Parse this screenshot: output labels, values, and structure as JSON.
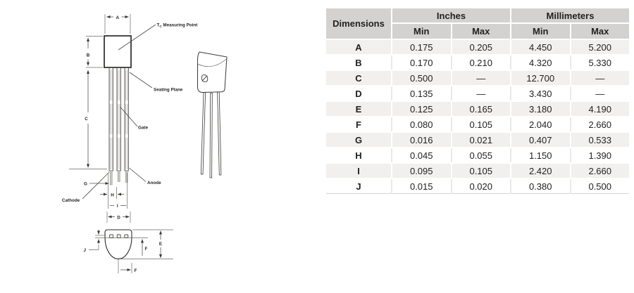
{
  "diagram": {
    "dims": {
      "a": "A",
      "b": "B",
      "c": "C",
      "d": "D",
      "e": "E",
      "f": "F",
      "g": "G",
      "h": "H",
      "i": "I",
      "j": "J"
    },
    "labels": {
      "tc_prefix": "T",
      "tc_sub": "C",
      "tc_text": "Measuring Point",
      "seating_plane": "Seating Plane",
      "gate": "Gate",
      "anode": "Anode",
      "cathode": "Cathode"
    }
  },
  "table": {
    "header": {
      "dimensions": "Dimensions",
      "inches": "Inches",
      "millimeters": "Millimeters",
      "min": "Min",
      "max": "Max"
    },
    "rows": [
      {
        "dim": "A",
        "in_min": "0.175",
        "in_max": "0.205",
        "mm_min": "4.450",
        "mm_max": "5.200"
      },
      {
        "dim": "B",
        "in_min": "0.170",
        "in_max": "0.210",
        "mm_min": "4.320",
        "mm_max": "5.330"
      },
      {
        "dim": "C",
        "in_min": "0.500",
        "in_max": "—",
        "mm_min": "12.700",
        "mm_max": "—"
      },
      {
        "dim": "D",
        "in_min": "0.135",
        "in_max": "—",
        "mm_min": "3.430",
        "mm_max": "—"
      },
      {
        "dim": "E",
        "in_min": "0.125",
        "in_max": "0.165",
        "mm_min": "3.180",
        "mm_max": "4.190"
      },
      {
        "dim": "F",
        "in_min": "0.080",
        "in_max": "0.105",
        "mm_min": "2.040",
        "mm_max": "2.660"
      },
      {
        "dim": "G",
        "in_min": "0.016",
        "in_max": "0.021",
        "mm_min": "0.407",
        "mm_max": "0.533"
      },
      {
        "dim": "H",
        "in_min": "0.045",
        "in_max": "0.055",
        "mm_min": "1.150",
        "mm_max": "1.390"
      },
      {
        "dim": "I",
        "in_min": "0.095",
        "in_max": "0.105",
        "mm_min": "2.420",
        "mm_max": "2.660"
      },
      {
        "dim": "J",
        "in_min": "0.015",
        "in_max": "0.020",
        "mm_min": "0.380",
        "mm_max": "0.500"
      }
    ]
  },
  "colors": {
    "header_bg": "#d4d2d0",
    "stripe_bg": "#f1f0ee",
    "text": "#232120"
  }
}
